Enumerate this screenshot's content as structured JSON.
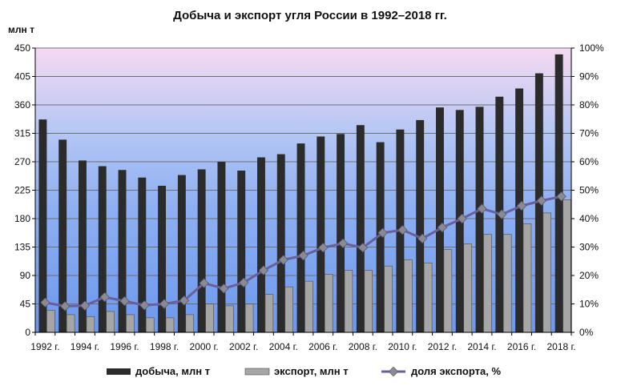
{
  "chart_data": {
    "type": "bar",
    "title": "Добыча и экспорт угля России в 1992–2018 гг.",
    "ylabel_left": "млн т",
    "ylim_left": [
      0,
      450
    ],
    "ylim_right": [
      0,
      100
    ],
    "left_ticks": [
      "0",
      "45",
      "90",
      "135",
      "180",
      "225",
      "270",
      "315",
      "360",
      "405",
      "450"
    ],
    "right_ticks": [
      "0%",
      "10%",
      "20%",
      "30%",
      "40%",
      "50%",
      "60%",
      "70%",
      "80%",
      "90%",
      "100%"
    ],
    "categories": [
      "1992",
      "1993",
      "1994",
      "1995",
      "1996",
      "1997",
      "1998",
      "1999",
      "2000",
      "2001",
      "2002",
      "2003",
      "2004",
      "2005",
      "2006",
      "2007",
      "2008",
      "2009",
      "2010",
      "2011",
      "2012",
      "2013",
      "2014",
      "2015",
      "2016",
      "2017",
      "2018"
    ],
    "x_tick_labels": [
      "1992 г.",
      "1994 г.",
      "1996 г.",
      "1998 г.",
      "2000 г.",
      "2002 г.",
      "2004 г.",
      "2006 г.",
      "2008 г.",
      "2010 г.",
      "2012 г.",
      "2014 г.",
      "2016 г.",
      "2018 г."
    ],
    "grid": true,
    "legend_position": "bottom",
    "series": [
      {
        "name": "добыча, млн т",
        "type": "bar",
        "axis": "left",
        "color": "#2b2b2b",
        "values": [
          337,
          305,
          272,
          263,
          257,
          245,
          232,
          249,
          258,
          270,
          256,
          277,
          282,
          299,
          310,
          314,
          328,
          301,
          321,
          336,
          356,
          352,
          357,
          373,
          386,
          410,
          440
        ]
      },
      {
        "name": "экспорт, млн т",
        "type": "bar",
        "axis": "left",
        "color": "#a6a6a6",
        "values": [
          35,
          28,
          25,
          33,
          28,
          23,
          23,
          28,
          45,
          42,
          45,
          60,
          72,
          81,
          92,
          98,
          98,
          105,
          115,
          110,
          131,
          140,
          155,
          155,
          172,
          189,
          210
        ]
      },
      {
        "name": "доля экспорта, %",
        "type": "line",
        "axis": "right",
        "color": "#8585a5",
        "values": [
          10.5,
          9.2,
          9.4,
          12.4,
          11.0,
          9.5,
          10.0,
          11.2,
          17.3,
          15.4,
          17.5,
          21.8,
          25.5,
          27.0,
          29.8,
          31.3,
          29.8,
          35.0,
          36.0,
          33.0,
          36.9,
          40.0,
          43.5,
          41.5,
          44.5,
          46.3,
          47.8
        ]
      }
    ]
  }
}
